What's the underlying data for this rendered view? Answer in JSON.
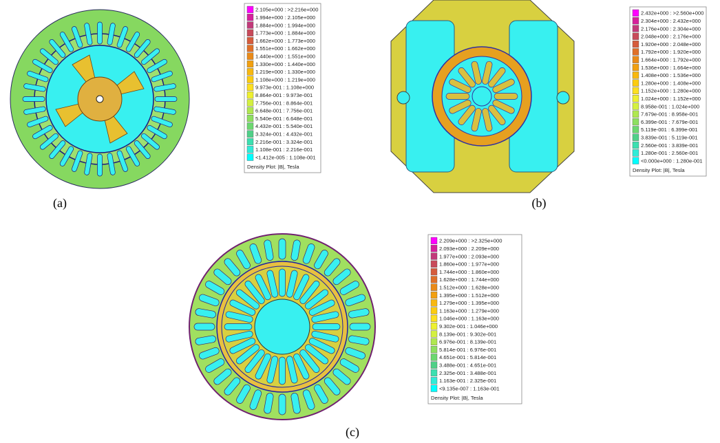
{
  "legend_colors": [
    "#ff00ff",
    "#d6209c",
    "#c23a7a",
    "#c84a5a",
    "#d65c3c",
    "#e07028",
    "#ea8a18",
    "#f2a010",
    "#f8b810",
    "#fccc10",
    "#fde020",
    "#eef030",
    "#d4f040",
    "#b0e850",
    "#8ee060",
    "#6cd870",
    "#50d088",
    "#3ce0b0",
    "#30ecd8",
    "#00ffff"
  ],
  "panels": [
    {
      "label": "(a)",
      "legend": {
        "rows": [
          "2.105e+000 : >2.216e+000",
          "1.994e+000 : 2.105e+000",
          "1.884e+000 : 1.994e+000",
          "1.773e+000 : 1.884e+000",
          "1.662e+000 : 1.773e+000",
          "1.551e+000 : 1.662e+000",
          "1.440e+000 : 1.551e+000",
          "1.330e+000 : 1.440e+000",
          "1.219e+000 : 1.330e+000",
          "1.108e+000 : 1.219e+000",
          "9.973e-001 : 1.108e+000",
          "8.864e-001 : 9.973e-001",
          "7.756e-001 : 8.864e-001",
          "6.648e-001 : 7.756e-001",
          "5.540e-001 : 6.648e-001",
          "4.432e-001 : 5.540e-001",
          "3.324e-001 : 4.432e-001",
          "2.216e-001 : 3.324e-001",
          "1.108e-001 : 2.216e-001",
          "<1.412e-005 : 1.108e-001"
        ],
        "footer": "Density Plot: |B|, Tesla"
      }
    },
    {
      "label": "(b)",
      "legend": {
        "rows": [
          "2.432e+000 : >2.560e+000",
          "2.304e+000 : 2.432e+000",
          "2.176e+000 : 2.304e+000",
          "2.048e+000 : 2.176e+000",
          "1.920e+000 : 2.048e+000",
          "1.792e+000 : 1.920e+000",
          "1.664e+000 : 1.792e+000",
          "1.536e+000 : 1.664e+000",
          "1.408e+000 : 1.536e+000",
          "1.280e+000 : 1.408e+000",
          "1.152e+000 : 1.280e+000",
          "1.024e+000 : 1.152e+000",
          "8.958e-001 : 1.024e+000",
          "7.679e-001 : 8.958e-001",
          "6.399e-001 : 7.679e-001",
          "5.119e-001 : 6.399e-001",
          "3.839e-001 : 5.119e-001",
          "2.560e-001 : 3.839e-001",
          "1.280e-001 : 2.560e-001",
          "<0.000e+000 : 1.280e-001"
        ],
        "footer": "Density Plot: |B|, Tesla"
      }
    },
    {
      "label": "(c)",
      "legend": {
        "rows": [
          "2.209e+000 : >2.325e+000",
          "2.093e+000 : 2.209e+000",
          "1.977e+000 : 2.093e+000",
          "1.860e+000 : 1.977e+000",
          "1.744e+000 : 1.860e+000",
          "1.628e+000 : 1.744e+000",
          "1.512e+000 : 1.628e+000",
          "1.395e+000 : 1.512e+000",
          "1.279e+000 : 1.395e+000",
          "1.163e+000 : 1.279e+000",
          "1.046e+000 : 1.163e+000",
          "9.302e-001 : 1.046e+000",
          "8.139e-001 : 9.302e-001",
          "6.976e-001 : 8.139e-001",
          "5.814e-001 : 6.976e-001",
          "4.651e-001 : 5.814e-001",
          "3.488e-001 : 4.651e-001",
          "2.325e-001 : 3.488e-001",
          "1.163e-001 : 2.325e-001",
          "<9.135e-007 : 1.163e-001"
        ],
        "footer": "Density Plot: |B|, Tesla"
      }
    }
  ]
}
